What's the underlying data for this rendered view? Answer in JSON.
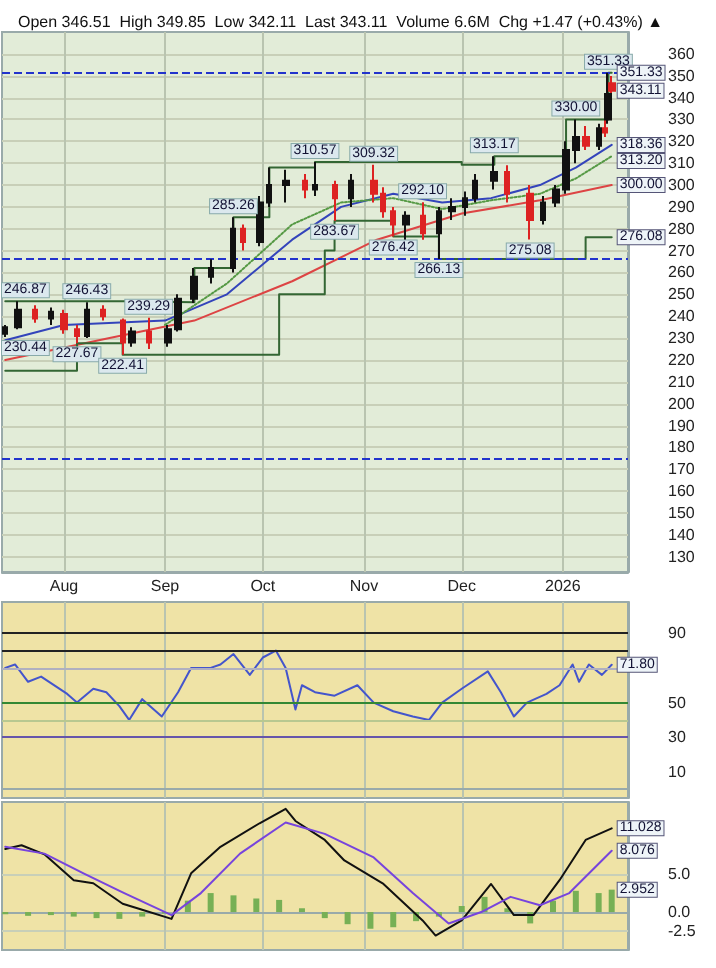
{
  "chart_data": [
    {
      "type": "candlestick",
      "title": "Open 346.51  High 349.85  Low 342.11  Last 343.11  Volume 6.6M  Chg +1.47 (+0.43%) ▲",
      "x": [
        "2025-07-14",
        "2025-07-18",
        "2025-07-23",
        "2025-07-28",
        "2025-08-01",
        "2025-08-05",
        "2025-08-08",
        "2025-08-13",
        "2025-08-19",
        "2025-08-22",
        "2025-08-27",
        "2025-09-02",
        "2025-09-05",
        "2025-09-10",
        "2025-09-15",
        "2025-09-22",
        "2025-09-25",
        "2025-09-30",
        "2025-10-03",
        "2025-10-08",
        "2025-10-14",
        "2025-10-17",
        "2025-10-23",
        "2025-10-28",
        "2025-11-04",
        "2025-11-07",
        "2025-11-10",
        "2025-11-14",
        "2025-11-19",
        "2025-11-24",
        "2025-11-28",
        "2025-12-02",
        "2025-12-05",
        "2025-12-11",
        "2025-12-15",
        "2025-12-22",
        "2025-12-26",
        "2025-12-30",
        "2026-01-02",
        "2026-01-05",
        "2026-01-08",
        "2026-01-12",
        "2026-01-14",
        "2026-01-15",
        "2026-01-16"
      ],
      "ohlc": [
        [
          232,
          236,
          230.44,
          235
        ],
        [
          235,
          246.87,
          234,
          243
        ],
        [
          243,
          245,
          237,
          239
        ],
        [
          239,
          244,
          236,
          242
        ],
        [
          241,
          243,
          232,
          234
        ],
        [
          234,
          236,
          227.67,
          231
        ],
        [
          231,
          246.43,
          230,
          243
        ],
        [
          243,
          245,
          238,
          240
        ],
        [
          238,
          239,
          222.41,
          228
        ],
        [
          228,
          235,
          226,
          233
        ],
        [
          233,
          239.29,
          225,
          228
        ],
        [
          228,
          236,
          226,
          234
        ],
        [
          234,
          250,
          233,
          248
        ],
        [
          248,
          262,
          246,
          258
        ],
        [
          258,
          266,
          255,
          262
        ],
        [
          262,
          285.26,
          260,
          280
        ],
        [
          280,
          282,
          270,
          274
        ],
        [
          274,
          295,
          272,
          292
        ],
        [
          292,
          308,
          290,
          300
        ],
        [
          300,
          307,
          292,
          302
        ],
        [
          302,
          305,
          294,
          298
        ],
        [
          298,
          310.57,
          295,
          300
        ],
        [
          300,
          302,
          283.67,
          294
        ],
        [
          294,
          305,
          290,
          302
        ],
        [
          302,
          309.32,
          292,
          296
        ],
        [
          296,
          299,
          285,
          288
        ],
        [
          288,
          290,
          276.42,
          282
        ],
        [
          282,
          288,
          274,
          286
        ],
        [
          286,
          292.1,
          275,
          278
        ],
        [
          278,
          290,
          266.13,
          288
        ],
        [
          288,
          294,
          284,
          290
        ],
        [
          290,
          297,
          286,
          294
        ],
        [
          294,
          305,
          292,
          302
        ],
        [
          302,
          313.17,
          298,
          306
        ],
        [
          306,
          309,
          292,
          296
        ],
        [
          296,
          300,
          275.08,
          284
        ],
        [
          284,
          295,
          282,
          292
        ],
        [
          292,
          300,
          290,
          298
        ],
        [
          298,
          320,
          296,
          316
        ],
        [
          316,
          330,
          310,
          322
        ],
        [
          322,
          327,
          316,
          318
        ],
        [
          318,
          328,
          316,
          326
        ],
        [
          326,
          332,
          322,
          324
        ],
        [
          330,
          351.33,
          328,
          341.64
        ],
        [
          346.51,
          349.85,
          342.11,
          343.11
        ]
      ],
      "series": [
        {
          "type": "line",
          "color": "#3344bb",
          "x": [
            "2025-07-14",
            "2025-08-01",
            "2025-09-01",
            "2025-09-20",
            "2025-10-10",
            "2025-10-25",
            "2025-11-10",
            "2025-11-25",
            "2025-12-10",
            "2025-12-25",
            "2026-01-05",
            "2026-01-16"
          ],
          "values": [
            229,
            236,
            238,
            250,
            275,
            290,
            296,
            292,
            294,
            300,
            308,
            318.36
          ]
        },
        {
          "type": "line",
          "color": "#dd4444",
          "x": [
            "2025-07-14",
            "2025-08-15",
            "2025-09-10",
            "2025-10-10",
            "2025-11-05",
            "2025-12-01",
            "2025-12-25",
            "2026-01-16"
          ],
          "values": [
            220,
            230,
            238,
            256,
            275,
            287,
            293,
            300
          ]
        },
        {
          "type": "line",
          "color": "#559944",
          "line_style": "dotted",
          "x": [
            "2025-09-01",
            "2025-09-20",
            "2025-10-10",
            "2025-10-25",
            "2025-11-10",
            "2025-11-25",
            "2025-12-10",
            "2025-12-25",
            "2026-01-05",
            "2026-01-16"
          ],
          "values": [
            236,
            255,
            282,
            292,
            294,
            289,
            293,
            296,
            303,
            313.2
          ]
        },
        {
          "type": "step",
          "color": "#336633",
          "x": [
            "2025-07-14",
            "2025-08-20",
            "2025-09-10",
            "2025-09-22",
            "2025-10-03",
            "2025-10-17",
            "2025-12-01",
            "2025-12-11",
            "2026-01-02",
            "2026-01-15",
            "2026-01-16"
          ],
          "values": [
            246.87,
            246.43,
            262,
            285.26,
            308,
            310.57,
            309.32,
            313.17,
            330,
            351.33,
            351.33
          ]
        },
        {
          "type": "step",
          "color": "#336633",
          "x": [
            "2025-07-14",
            "2025-08-05",
            "2025-08-19",
            "2025-09-22",
            "2025-10-06",
            "2025-10-20",
            "2025-10-23",
            "2025-11-10",
            "2025-11-24",
            "2026-01-08",
            "2026-01-16"
          ],
          "values": [
            215,
            227.67,
            222.41,
            222.41,
            250,
            270,
            283.67,
            276.42,
            266.13,
            276.08,
            276.08
          ]
        }
      ],
      "xlim": [
        "2025-07-13",
        "2026-01-21"
      ],
      "ylim": [
        123,
        370
      ],
      "xticks": [
        {
          "value": "2025-08-01",
          "label": "Aug"
        },
        {
          "value": "2025-09-01",
          "label": "Sep"
        },
        {
          "value": "2025-10-01",
          "label": "Oct"
        },
        {
          "value": "2025-11-01",
          "label": "Nov"
        },
        {
          "value": "2025-12-01",
          "label": "Dec"
        },
        {
          "value": "2026-01-01",
          "label": "2026"
        }
      ],
      "yticks": [
        130,
        140,
        150,
        160,
        170,
        180,
        190,
        200,
        210,
        220,
        230,
        240,
        250,
        260,
        270,
        280,
        290,
        300,
        310,
        320,
        330,
        340,
        350,
        360
      ],
      "grid": true,
      "marker": "none",
      "ref_lines": [
        {
          "axis": "y",
          "value": 351.33,
          "color": "#2233cc",
          "line_style": "dashed"
        },
        {
          "axis": "y",
          "value": 266.13,
          "color": "#2233cc",
          "line_style": "dashed"
        },
        {
          "axis": "y",
          "value": 175,
          "color": "#2233cc",
          "line_style": "dashed"
        }
      ],
      "annotations": [
        {
          "text": "230.44",
          "x": "2025-07-14",
          "y": 230.44
        },
        {
          "text": "246.87",
          "x": "2025-07-18",
          "y": 246.87
        },
        {
          "text": "227.67",
          "x": "2025-08-05",
          "y": 227.67
        },
        {
          "text": "246.43",
          "x": "2025-08-08",
          "y": 246.43
        },
        {
          "text": "222.41",
          "x": "2025-08-19",
          "y": 222.41
        },
        {
          "text": "239.29",
          "x": "2025-08-27",
          "y": 239.29
        },
        {
          "text": "285.26",
          "x": "2025-09-22",
          "y": 285.26
        },
        {
          "text": "310.57",
          "x": "2025-10-17",
          "y": 310.57
        },
        {
          "text": "283.67",
          "x": "2025-10-23",
          "y": 283.67
        },
        {
          "text": "309.32",
          "x": "2025-11-04",
          "y": 309.32
        },
        {
          "text": "276.42",
          "x": "2025-11-10",
          "y": 276.42
        },
        {
          "text": "292.10",
          "x": "2025-11-19",
          "y": 292.1
        },
        {
          "text": "266.13",
          "x": "2025-11-24",
          "y": 266.13
        },
        {
          "text": "313.17",
          "x": "2025-12-11",
          "y": 313.17
        },
        {
          "text": "275.08",
          "x": "2025-12-22",
          "y": 275.08
        },
        {
          "text": "330.00",
          "x": "2026-01-05",
          "y": 330
        },
        {
          "text": "351.33",
          "x": "2026-01-15",
          "y": 351.33
        },
        {
          "text": "351.33",
          "x": "2026-01-16",
          "y": 351.33
        },
        {
          "text": "343.11",
          "x": "2026-01-16",
          "y": 343.11
        },
        {
          "text": "318.36",
          "x": "2026-01-16",
          "y": 318.36
        },
        {
          "text": "313.20",
          "x": "2026-01-16",
          "y": 313.2
        },
        {
          "text": "300.00",
          "x": "2026-01-16",
          "y": 300
        },
        {
          "text": "276.08",
          "x": "2026-01-16",
          "y": 276.08
        }
      ]
    },
    {
      "type": "line",
      "tick_labels": "y",
      "grid": "x",
      "marker": "none",
      "series": [
        {
          "color": "#4455cc",
          "x": [
            "2025-07-14",
            "2025-07-17",
            "2025-07-21",
            "2025-07-25",
            "2025-08-02",
            "2025-08-05",
            "2025-08-10",
            "2025-08-14",
            "2025-08-18",
            "2025-08-21",
            "2025-08-25",
            "2025-08-31",
            "2025-09-05",
            "2025-09-09",
            "2025-09-15",
            "2025-09-18",
            "2025-09-22",
            "2025-09-27",
            "2025-10-01",
            "2025-10-05",
            "2025-10-08",
            "2025-10-11",
            "2025-10-13",
            "2025-10-17",
            "2025-10-23",
            "2025-10-30",
            "2025-11-04",
            "2025-11-10",
            "2025-11-16",
            "2025-11-21",
            "2025-11-25",
            "2025-12-01",
            "2025-12-09",
            "2025-12-13",
            "2025-12-17",
            "2025-12-21",
            "2025-12-27",
            "2025-12-31",
            "2026-01-04",
            "2026-01-06",
            "2026-01-09",
            "2026-01-13",
            "2026-01-16"
          ],
          "values": [
            70,
            72,
            62,
            65,
            55,
            50,
            58,
            56,
            48,
            40,
            52,
            42,
            56,
            70,
            70,
            72,
            78,
            66,
            76,
            80,
            70,
            46,
            60,
            56,
            54,
            60,
            50,
            45,
            42,
            40,
            50,
            58,
            68,
            56,
            42,
            50,
            55,
            60,
            72,
            62,
            72,
            66,
            71.8
          ]
        }
      ],
      "xlim": [
        "2025-07-13",
        "2026-01-21"
      ],
      "ylim": [
        -5,
        108
      ],
      "xticks": [
        {
          "value": "2025-08-01",
          "label": null
        },
        {
          "value": "2025-09-01",
          "label": null
        },
        {
          "value": "2025-10-01",
          "label": null
        },
        {
          "value": "2025-11-01",
          "label": null
        },
        {
          "value": "2025-12-01",
          "label": null
        },
        {
          "value": "2026-01-01",
          "label": null
        }
      ],
      "yticks": [
        10,
        30,
        50,
        90
      ],
      "ref_lines": [
        {
          "axis": "y",
          "value": 90,
          "color": "#222222"
        },
        {
          "axis": "y",
          "value": 80,
          "color": "#222222"
        },
        {
          "axis": "y",
          "value": 70,
          "color": "#b0b0c0"
        },
        {
          "axis": "y",
          "value": 50,
          "color": "#338833"
        },
        {
          "axis": "y",
          "value": 40,
          "color": "#b8c890"
        },
        {
          "axis": "y",
          "value": 30,
          "color": "#6655aa"
        }
      ],
      "annotations": [
        {
          "text": "71.80",
          "x": "2026-01-16",
          "y": 71.8
        }
      ]
    },
    {
      "type": "line",
      "tick_labels": "y",
      "grid": true,
      "marker": "none",
      "series": [
        {
          "type": "bar",
          "color": "#77b055",
          "x": [
            "2025-07-14",
            "2025-07-21",
            "2025-07-28",
            "2025-08-04",
            "2025-08-11",
            "2025-08-18",
            "2025-08-25",
            "2025-09-01",
            "2025-09-08",
            "2025-09-15",
            "2025-09-22",
            "2025-09-29",
            "2025-10-06",
            "2025-10-13",
            "2025-10-20",
            "2025-10-27",
            "2025-11-03",
            "2025-11-10",
            "2025-11-17",
            "2025-11-24",
            "2025-12-01",
            "2025-12-08",
            "2025-12-15",
            "2025-12-22",
            "2025-12-29",
            "2026-01-05",
            "2026-01-12",
            "2026-01-16"
          ],
          "values": [
            -0.3,
            -0.5,
            -0.4,
            -0.6,
            -0.8,
            -0.9,
            -0.6,
            -0.2,
            1.5,
            2.5,
            2.2,
            1.8,
            1.6,
            0.5,
            -0.8,
            -1.6,
            -2.2,
            -2,
            -1.2,
            -0.6,
            0.8,
            2,
            0.5,
            -1.5,
            1.5,
            2.8,
            2.5,
            2.952
          ]
        },
        {
          "type": "line",
          "color": "#111111",
          "x": [
            "2025-07-14",
            "2025-07-19",
            "2025-07-26",
            "2025-08-04",
            "2025-08-10",
            "2025-08-19",
            "2025-08-25",
            "2025-09-03",
            "2025-09-09",
            "2025-09-18",
            "2025-09-30",
            "2025-10-08",
            "2025-10-11",
            "2025-10-20",
            "2025-10-26",
            "2025-11-07",
            "2025-11-19",
            "2025-11-23",
            "2025-12-01",
            "2025-12-10",
            "2025-12-17",
            "2025-12-23",
            "2025-12-31",
            "2026-01-08",
            "2026-01-16"
          ],
          "values": [
            8.3,
            8.8,
            7.6,
            4.2,
            3.8,
            1.1,
            0.3,
            -0.9,
            5.1,
            8.6,
            11.7,
            13.6,
            12,
            9.5,
            6.8,
            3.7,
            -1.1,
            -3.1,
            -1.1,
            3.7,
            -0.4,
            -0.4,
            4.2,
            9.5,
            11.028
          ]
        },
        {
          "type": "line",
          "color": "#7744dd",
          "x": [
            "2025-07-14",
            "2025-07-26",
            "2025-08-07",
            "2025-08-19",
            "2025-09-03",
            "2025-09-12",
            "2025-09-24",
            "2025-10-08",
            "2025-10-20",
            "2025-11-04",
            "2025-11-16",
            "2025-11-27",
            "2025-12-07",
            "2025-12-16",
            "2025-12-25",
            "2026-01-03",
            "2026-01-16"
          ],
          "values": [
            8.6,
            7.7,
            5.1,
            2.6,
            -0.4,
            2.5,
            7.7,
            11.8,
            10.3,
            7.2,
            2.5,
            -1.5,
            0,
            2,
            0.9,
            2.5,
            8.076
          ]
        }
      ],
      "xlim": [
        "2025-07-13",
        "2026-01-21"
      ],
      "ylim": [
        -5,
        14.5
      ],
      "xticks": [
        {
          "value": "2025-08-01",
          "label": null
        },
        {
          "value": "2025-09-01",
          "label": null
        },
        {
          "value": "2025-10-01",
          "label": null
        },
        {
          "value": "2025-11-01",
          "label": null
        },
        {
          "value": "2025-12-01",
          "label": null
        },
        {
          "value": "2026-01-01",
          "label": null
        }
      ],
      "yticks": [
        {
          "value": -2.5,
          "label": "-2.5"
        },
        {
          "value": 0,
          "label": "0.0"
        },
        {
          "value": 5,
          "label": "5.0"
        }
      ],
      "annotations": [
        {
          "text": "11.028",
          "x": "2026-01-16",
          "y": 11.028
        },
        {
          "text": "8.076",
          "x": "2026-01-16",
          "y": 8.076
        },
        {
          "text": "2.952",
          "x": "2026-01-16",
          "y": 2.952
        }
      ]
    }
  ]
}
